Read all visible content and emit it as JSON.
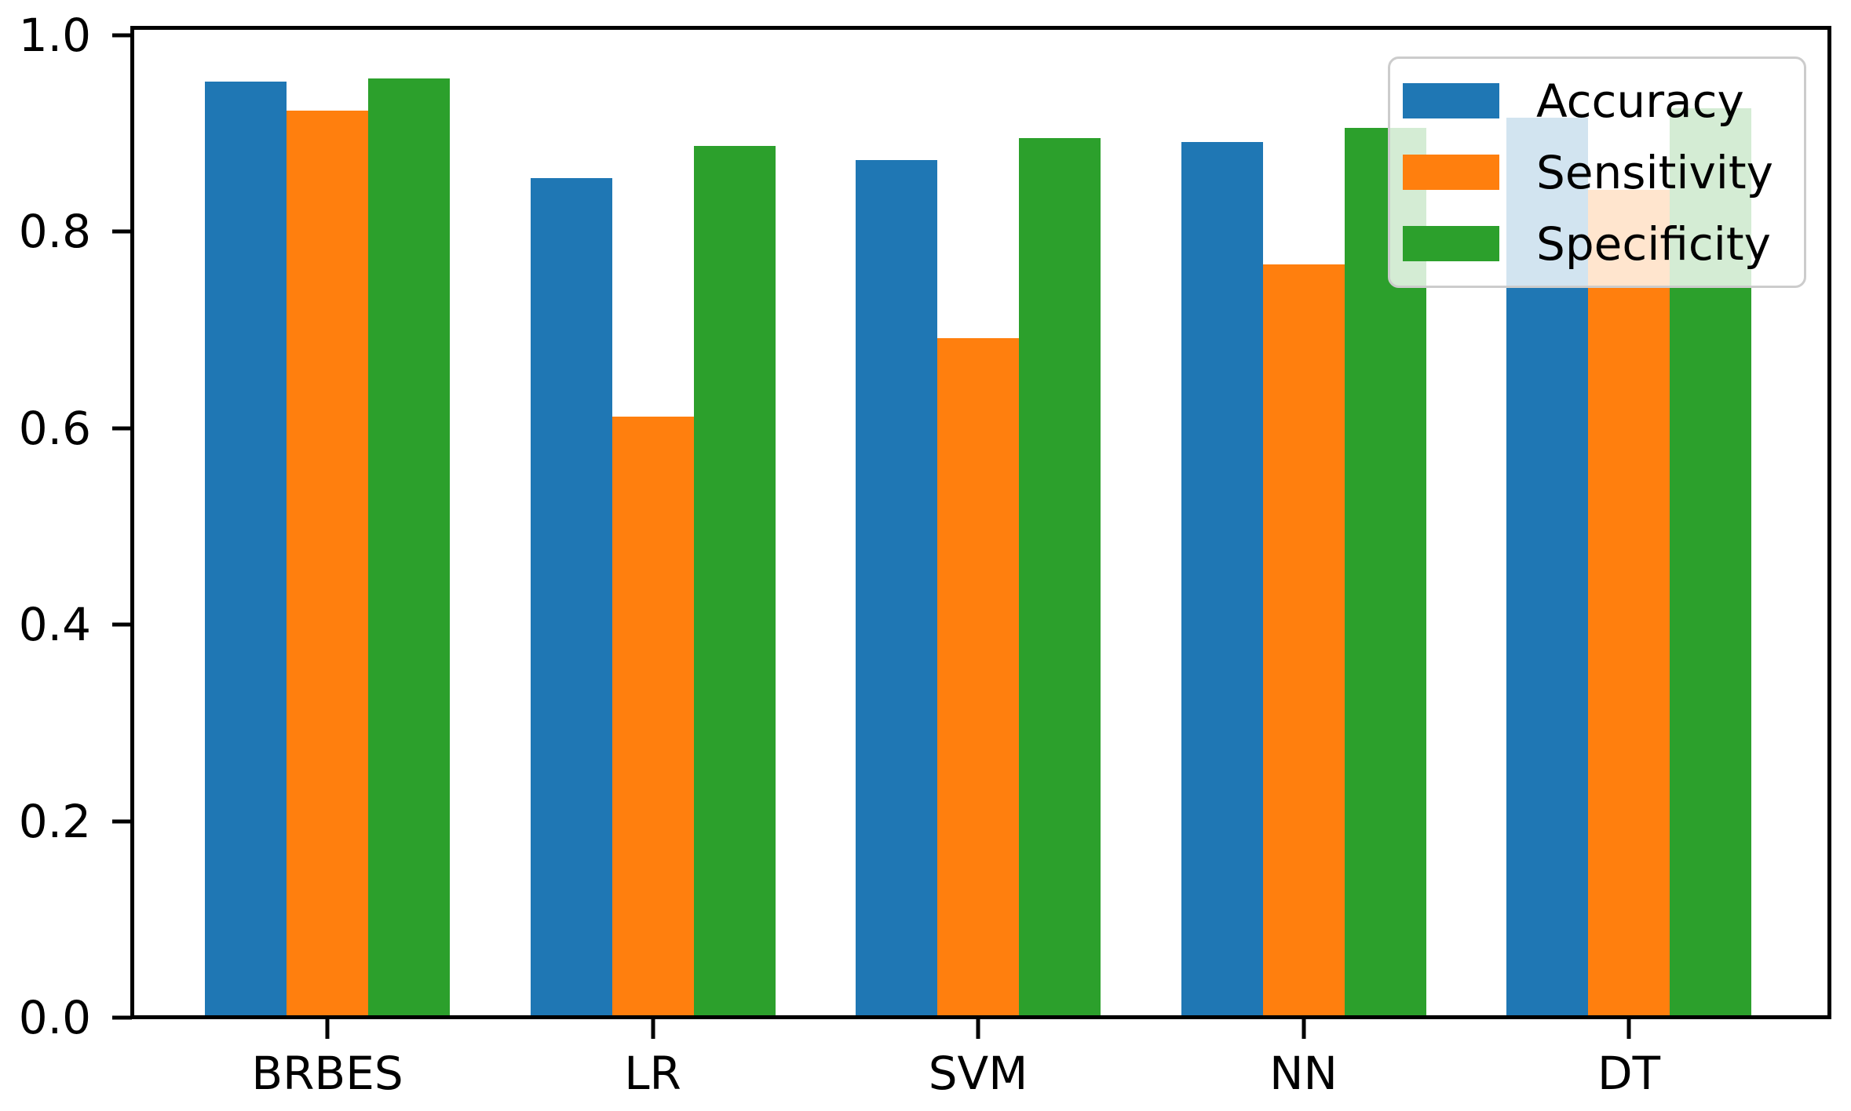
{
  "chart_data": {
    "type": "bar",
    "title": "",
    "xlabel": "",
    "ylabel": "",
    "categories": [
      "BRBES",
      "LR",
      "SVM",
      "NN",
      "DT"
    ],
    "series": [
      {
        "name": "Accuracy",
        "color": "#1f77b4",
        "values": [
          0.953,
          0.855,
          0.873,
          0.891,
          0.916
        ]
      },
      {
        "name": "Sensitivity",
        "color": "#ff7f0e",
        "values": [
          0.923,
          0.612,
          0.692,
          0.767,
          0.843
        ]
      },
      {
        "name": "Specificity",
        "color": "#2ca02c",
        "values": [
          0.956,
          0.887,
          0.895,
          0.906,
          0.926
        ]
      }
    ],
    "ylim": [
      0.0,
      1.008
    ],
    "yticks": [
      0.0,
      0.2,
      0.4,
      0.6,
      0.8,
      1.0
    ],
    "ytick_labels": [
      "0.0",
      "0.2",
      "0.4",
      "0.6",
      "0.8",
      "1.0"
    ],
    "grid": false,
    "legend": {
      "position": "upper-right",
      "labels": [
        "Accuracy",
        "Sensitivity",
        "Specificity"
      ]
    },
    "colors": {
      "background": "#ffffff",
      "axis": "#000000",
      "legend_border": "#cccccc",
      "legend_face": "rgba(255,255,255,0.8)"
    }
  }
}
